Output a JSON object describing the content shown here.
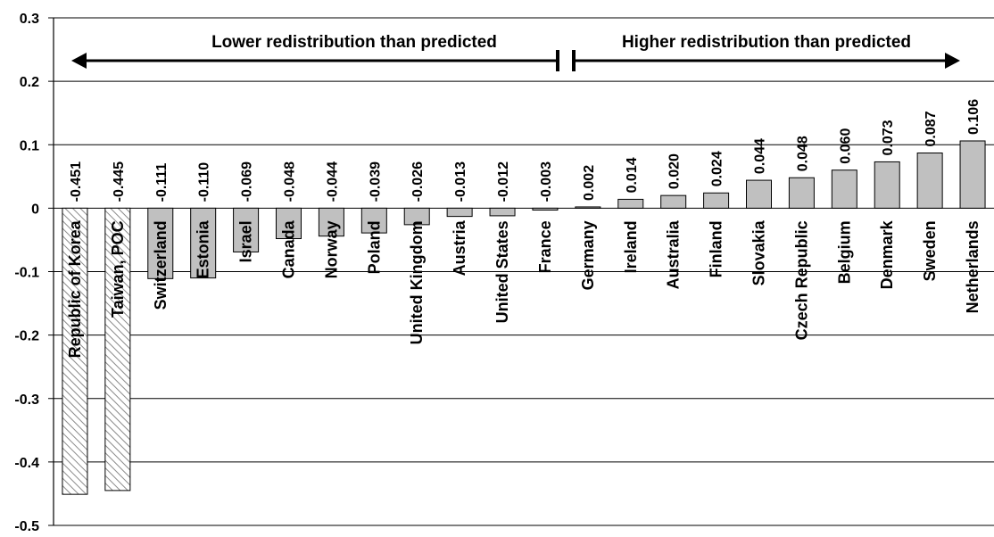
{
  "chart_data": {
    "type": "bar",
    "title": "",
    "xlabel": "",
    "ylabel": "",
    "ylim": [
      -0.5,
      0.3
    ],
    "yticks": [
      "0.3",
      "0.2",
      "0.1",
      "0",
      "-0.1",
      "-0.2",
      "-0.3",
      "-0.4",
      "-0.5"
    ],
    "ytick_values": [
      0.3,
      0.2,
      0.1,
      0,
      -0.1,
      -0.2,
      -0.3,
      -0.4,
      -0.5
    ],
    "grid": true,
    "categories": [
      "Republic of Korea",
      "Taiwan, POC",
      "Switzerland",
      "Estonia",
      "Israel",
      "Canada",
      "Norway",
      "Poland",
      "United Kingdom",
      "Austria",
      "United States",
      "France",
      "Germany",
      "Ireland",
      "Australia",
      "Finland",
      "Slovakia",
      "Czech Republic",
      "Belgium",
      "Denmark",
      "Sweden",
      "Netherlands"
    ],
    "values": [
      -0.451,
      -0.445,
      -0.111,
      -0.11,
      -0.069,
      -0.048,
      -0.044,
      -0.039,
      -0.026,
      -0.013,
      -0.012,
      -0.003,
      0.002,
      0.014,
      0.02,
      0.024,
      0.044,
      0.048,
      0.06,
      0.073,
      0.087,
      0.106
    ],
    "value_labels": [
      "-0.451",
      "-0.445",
      "-0.111",
      "-0.110",
      "-0.069",
      "-0.048",
      "-0.044",
      "-0.039",
      "-0.026",
      "-0.013",
      "-0.012",
      "-0.003",
      "0.002",
      "0.014",
      "0.020",
      "0.024",
      "0.044",
      "0.048",
      "0.060",
      "0.073",
      "0.087",
      "0.106"
    ],
    "hatched_categories": [
      "Republic of Korea",
      "Taiwan, POC"
    ],
    "annotations": {
      "left": "Lower redistribution than predicted",
      "right": "Higher redistribution than predicted"
    },
    "colors": {
      "bar_fill": "#c0c0c0",
      "bar_stroke": "#000000",
      "hatch": "#8a8a8a",
      "grid": "#000000"
    }
  }
}
